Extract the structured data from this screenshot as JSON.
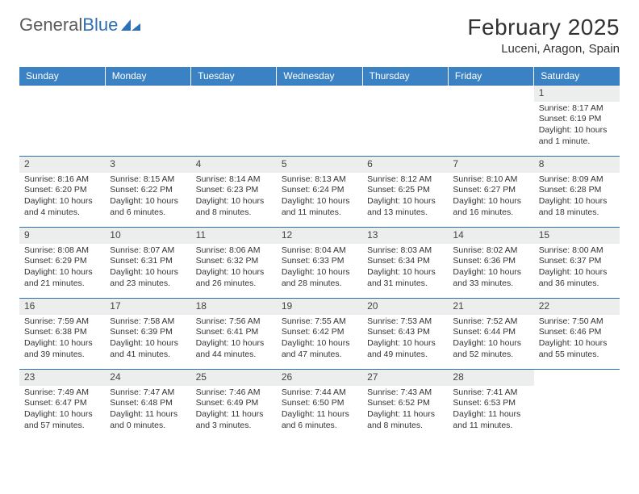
{
  "logo": {
    "word1": "General",
    "word2": "Blue",
    "accent_color": "#2f6fb3"
  },
  "title": {
    "month": "February 2025",
    "location": "Luceni, Aragon, Spain"
  },
  "colors": {
    "header_bg": "#3a82c4",
    "header_text": "#ffffff",
    "row_border": "#2f6fb3",
    "daynum_bg": "#eceded",
    "text": "#333333"
  },
  "weekdays": [
    "Sunday",
    "Monday",
    "Tuesday",
    "Wednesday",
    "Thursday",
    "Friday",
    "Saturday"
  ],
  "first_weekday_index": 6,
  "days": [
    {
      "n": 1,
      "sunrise": "8:17 AM",
      "sunset": "6:19 PM",
      "daylight": "10 hours and 1 minute."
    },
    {
      "n": 2,
      "sunrise": "8:16 AM",
      "sunset": "6:20 PM",
      "daylight": "10 hours and 4 minutes."
    },
    {
      "n": 3,
      "sunrise": "8:15 AM",
      "sunset": "6:22 PM",
      "daylight": "10 hours and 6 minutes."
    },
    {
      "n": 4,
      "sunrise": "8:14 AM",
      "sunset": "6:23 PM",
      "daylight": "10 hours and 8 minutes."
    },
    {
      "n": 5,
      "sunrise": "8:13 AM",
      "sunset": "6:24 PM",
      "daylight": "10 hours and 11 minutes."
    },
    {
      "n": 6,
      "sunrise": "8:12 AM",
      "sunset": "6:25 PM",
      "daylight": "10 hours and 13 minutes."
    },
    {
      "n": 7,
      "sunrise": "8:10 AM",
      "sunset": "6:27 PM",
      "daylight": "10 hours and 16 minutes."
    },
    {
      "n": 8,
      "sunrise": "8:09 AM",
      "sunset": "6:28 PM",
      "daylight": "10 hours and 18 minutes."
    },
    {
      "n": 9,
      "sunrise": "8:08 AM",
      "sunset": "6:29 PM",
      "daylight": "10 hours and 21 minutes."
    },
    {
      "n": 10,
      "sunrise": "8:07 AM",
      "sunset": "6:31 PM",
      "daylight": "10 hours and 23 minutes."
    },
    {
      "n": 11,
      "sunrise": "8:06 AM",
      "sunset": "6:32 PM",
      "daylight": "10 hours and 26 minutes."
    },
    {
      "n": 12,
      "sunrise": "8:04 AM",
      "sunset": "6:33 PM",
      "daylight": "10 hours and 28 minutes."
    },
    {
      "n": 13,
      "sunrise": "8:03 AM",
      "sunset": "6:34 PM",
      "daylight": "10 hours and 31 minutes."
    },
    {
      "n": 14,
      "sunrise": "8:02 AM",
      "sunset": "6:36 PM",
      "daylight": "10 hours and 33 minutes."
    },
    {
      "n": 15,
      "sunrise": "8:00 AM",
      "sunset": "6:37 PM",
      "daylight": "10 hours and 36 minutes."
    },
    {
      "n": 16,
      "sunrise": "7:59 AM",
      "sunset": "6:38 PM",
      "daylight": "10 hours and 39 minutes."
    },
    {
      "n": 17,
      "sunrise": "7:58 AM",
      "sunset": "6:39 PM",
      "daylight": "10 hours and 41 minutes."
    },
    {
      "n": 18,
      "sunrise": "7:56 AM",
      "sunset": "6:41 PM",
      "daylight": "10 hours and 44 minutes."
    },
    {
      "n": 19,
      "sunrise": "7:55 AM",
      "sunset": "6:42 PM",
      "daylight": "10 hours and 47 minutes."
    },
    {
      "n": 20,
      "sunrise": "7:53 AM",
      "sunset": "6:43 PM",
      "daylight": "10 hours and 49 minutes."
    },
    {
      "n": 21,
      "sunrise": "7:52 AM",
      "sunset": "6:44 PM",
      "daylight": "10 hours and 52 minutes."
    },
    {
      "n": 22,
      "sunrise": "7:50 AM",
      "sunset": "6:46 PM",
      "daylight": "10 hours and 55 minutes."
    },
    {
      "n": 23,
      "sunrise": "7:49 AM",
      "sunset": "6:47 PM",
      "daylight": "10 hours and 57 minutes."
    },
    {
      "n": 24,
      "sunrise": "7:47 AM",
      "sunset": "6:48 PM",
      "daylight": "11 hours and 0 minutes."
    },
    {
      "n": 25,
      "sunrise": "7:46 AM",
      "sunset": "6:49 PM",
      "daylight": "11 hours and 3 minutes."
    },
    {
      "n": 26,
      "sunrise": "7:44 AM",
      "sunset": "6:50 PM",
      "daylight": "11 hours and 6 minutes."
    },
    {
      "n": 27,
      "sunrise": "7:43 AM",
      "sunset": "6:52 PM",
      "daylight": "11 hours and 8 minutes."
    },
    {
      "n": 28,
      "sunrise": "7:41 AM",
      "sunset": "6:53 PM",
      "daylight": "11 hours and 11 minutes."
    }
  ],
  "labels": {
    "sunrise": "Sunrise:",
    "sunset": "Sunset:",
    "daylight": "Daylight:"
  }
}
